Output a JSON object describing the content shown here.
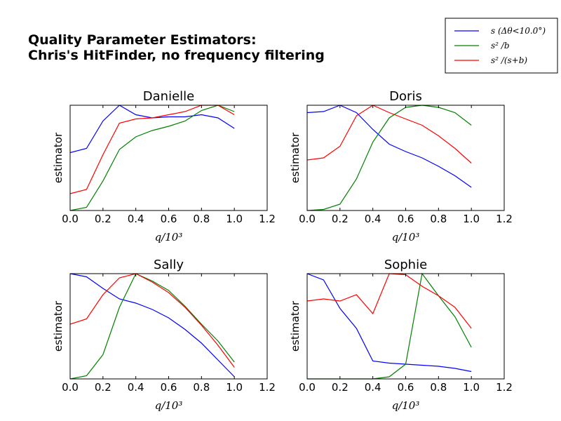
{
  "figure": {
    "title_line1": "Quality Parameter Estimators:",
    "title_line2": "Chris's HitFinder, no frequency filtering"
  },
  "legend": {
    "placement": "top-right",
    "entries": [
      {
        "label": "s (Δθ<10.0°)",
        "color": "#0000ff"
      },
      {
        "label": "s² /b",
        "color": "#008000"
      },
      {
        "label": "s² /(s+b)",
        "color": "#ff0000"
      }
    ]
  },
  "chart_data": [
    {
      "type": "line",
      "title": "Danielle",
      "xlabel": "q/10³",
      "ylabel": "estimator",
      "xlim": [
        0.0,
        1.2
      ],
      "ylim": [
        0.0,
        1.0
      ],
      "xticks": [
        "0.0",
        "0.2",
        "0.4",
        "0.6",
        "0.8",
        "1.0",
        "1.2"
      ],
      "x": [
        0.0,
        0.1,
        0.2,
        0.3,
        0.4,
        0.5,
        0.6,
        0.7,
        0.8,
        0.9,
        1.0
      ],
      "series": [
        {
          "color": "#0000ff",
          "values": [
            0.55,
            0.59,
            0.85,
            1.0,
            0.91,
            0.88,
            0.89,
            0.89,
            0.91,
            0.88,
            0.78
          ]
        },
        {
          "color": "#008000",
          "values": [
            0.0,
            0.03,
            0.28,
            0.58,
            0.7,
            0.76,
            0.8,
            0.85,
            0.95,
            1.0,
            0.94
          ]
        },
        {
          "color": "#ff0000",
          "values": [
            0.16,
            0.2,
            0.53,
            0.83,
            0.87,
            0.88,
            0.91,
            0.94,
            1.0,
            1.0,
            0.91
          ]
        }
      ]
    },
    {
      "type": "line",
      "title": "Doris",
      "xlabel": "q/10³",
      "ylabel": "estimator",
      "xlim": [
        0.0,
        1.2
      ],
      "ylim": [
        0.0,
        1.0
      ],
      "xticks": [
        "0.0",
        "0.2",
        "0.4",
        "0.6",
        "0.8",
        "1.0",
        "1.2"
      ],
      "x": [
        0.0,
        0.1,
        0.2,
        0.3,
        0.4,
        0.5,
        0.6,
        0.7,
        0.8,
        0.9,
        1.0
      ],
      "series": [
        {
          "color": "#0000ff",
          "values": [
            0.93,
            0.94,
            1.0,
            0.93,
            0.77,
            0.63,
            0.56,
            0.5,
            0.42,
            0.33,
            0.22
          ]
        },
        {
          "color": "#008000",
          "values": [
            0.0,
            0.01,
            0.06,
            0.3,
            0.65,
            0.88,
            0.98,
            1.0,
            0.98,
            0.93,
            0.81
          ]
        },
        {
          "color": "#ff0000",
          "values": [
            0.48,
            0.5,
            0.61,
            0.9,
            1.0,
            0.93,
            0.87,
            0.81,
            0.71,
            0.59,
            0.45
          ]
        }
      ]
    },
    {
      "type": "line",
      "title": "Sally",
      "xlabel": "q/10³",
      "ylabel": "estimator",
      "xlim": [
        0.0,
        1.2
      ],
      "ylim": [
        0.0,
        1.0
      ],
      "xticks": [
        "0.0",
        "0.2",
        "0.4",
        "0.6",
        "0.8",
        "1.0",
        "1.2"
      ],
      "x": [
        0.0,
        0.1,
        0.2,
        0.3,
        0.4,
        0.5,
        0.6,
        0.7,
        0.8,
        0.9,
        1.0
      ],
      "series": [
        {
          "color": "#0000ff",
          "values": [
            1.0,
            0.97,
            0.86,
            0.76,
            0.72,
            0.66,
            0.58,
            0.47,
            0.34,
            0.18,
            0.02
          ]
        },
        {
          "color": "#008000",
          "values": [
            0.0,
            0.03,
            0.23,
            0.68,
            1.0,
            0.93,
            0.84,
            0.69,
            0.52,
            0.36,
            0.16
          ]
        },
        {
          "color": "#ff0000",
          "values": [
            0.52,
            0.57,
            0.8,
            0.96,
            1.0,
            0.92,
            0.82,
            0.68,
            0.51,
            0.32,
            0.11
          ]
        }
      ]
    },
    {
      "type": "line",
      "title": "Sophie",
      "xlabel": "q/10³",
      "ylabel": "estimator",
      "xlim": [
        0.0,
        1.2
      ],
      "ylim": [
        0.0,
        1.0
      ],
      "xticks": [
        "0.0",
        "0.2",
        "0.4",
        "0.6",
        "0.8",
        "1.0",
        "1.2"
      ],
      "x": [
        0.0,
        0.1,
        0.2,
        0.3,
        0.4,
        0.5,
        0.6,
        0.7,
        0.8,
        0.9,
        1.0
      ],
      "series": [
        {
          "color": "#0000ff",
          "values": [
            1.0,
            0.94,
            0.67,
            0.48,
            0.17,
            0.15,
            0.14,
            0.13,
            0.12,
            0.1,
            0.07
          ]
        },
        {
          "color": "#008000",
          "values": [
            0.0,
            0.0,
            0.0,
            0.0,
            0.0,
            0.02,
            0.14,
            1.0,
            0.79,
            0.59,
            0.3
          ]
        },
        {
          "color": "#ff0000",
          "values": [
            0.74,
            0.76,
            0.74,
            0.8,
            0.62,
            1.0,
            0.99,
            0.88,
            0.79,
            0.68,
            0.48
          ]
        }
      ]
    }
  ]
}
